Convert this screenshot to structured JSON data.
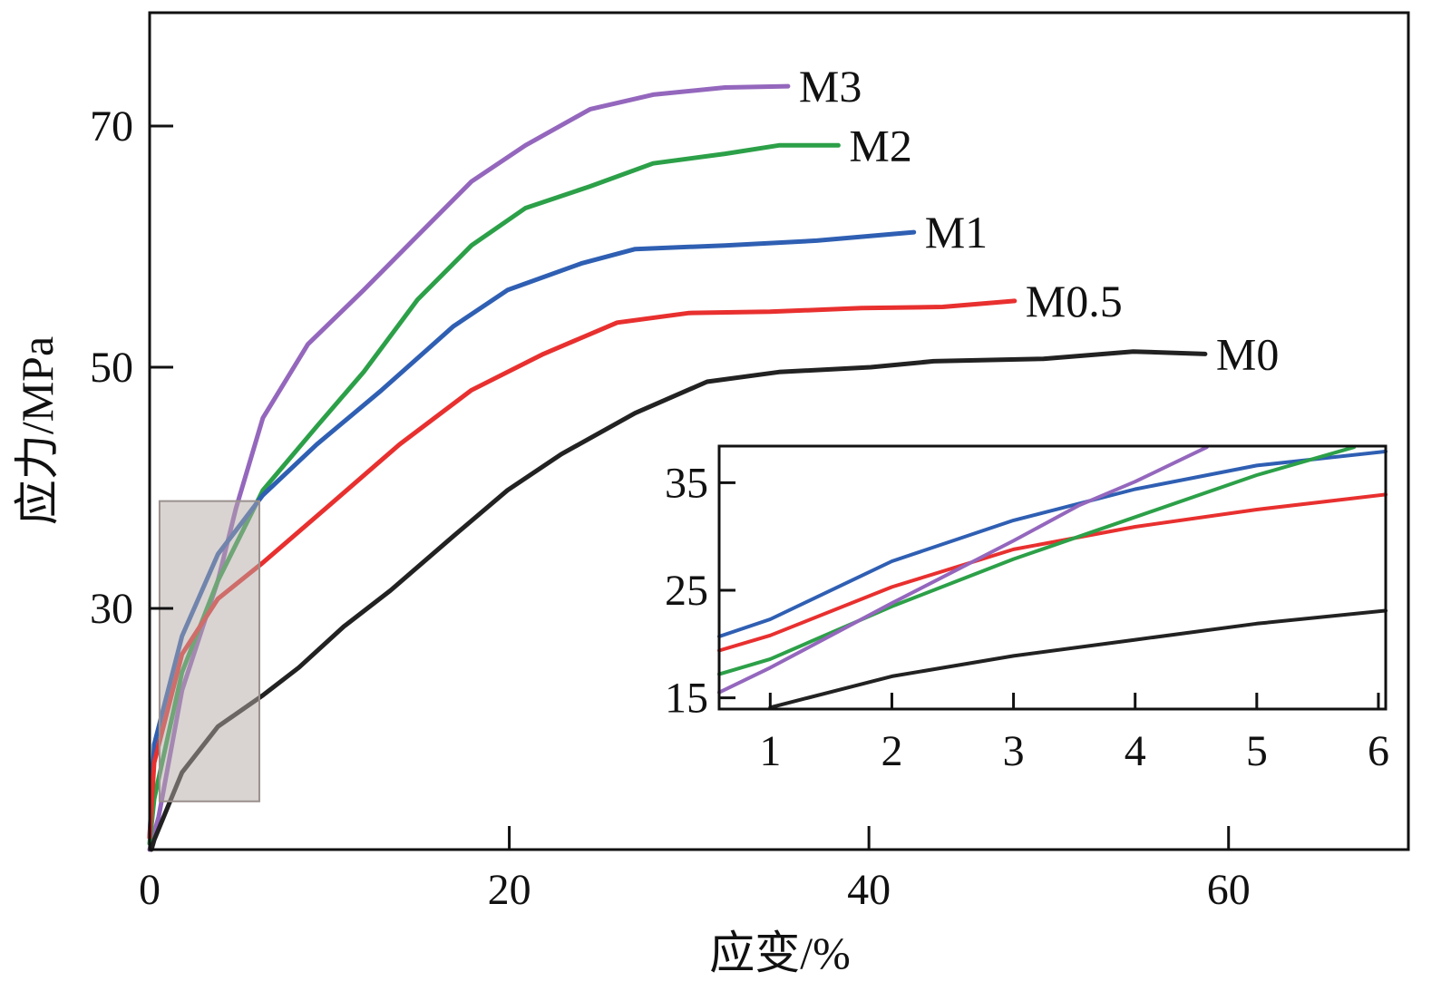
{
  "chart_data": [
    {
      "type": "line",
      "xlabel": "应变/%",
      "ylabel": "应力/MPa",
      "xlim": [
        0,
        70
      ],
      "ylim": [
        10,
        79.4
      ],
      "xticks": [
        0,
        20,
        40,
        60
      ],
      "yticks": [
        30,
        50,
        70
      ],
      "grid": false,
      "highlight_region": {
        "x": [
          0.55,
          6.1
        ],
        "y": [
          14.0,
          38.9
        ],
        "color": "#b4aaa5"
      },
      "series": [
        {
          "name": "M3",
          "color": "#9467bd",
          "x": [
            0,
            0.5,
            1.8,
            3.8,
            4.8,
            6.3,
            8.8,
            11.9,
            14.9,
            17.9,
            20.9,
            24.5,
            28,
            32,
            35.5
          ],
          "y": [
            10,
            12.7,
            23.2,
            32.3,
            38.3,
            45.8,
            51.9,
            56.4,
            60.9,
            65.4,
            68.4,
            71.4,
            72.6,
            73.2,
            73.3
          ]
        },
        {
          "name": "M2",
          "color": "#2ca048",
          "x": [
            0,
            0.25,
            1.8,
            3.8,
            6.3,
            9.3,
            11.9,
            14.9,
            17.9,
            20.9,
            24.5,
            28,
            32,
            35,
            38.3
          ],
          "y": [
            10.5,
            14.2,
            24.7,
            32.3,
            39.8,
            45.1,
            49.6,
            55.6,
            60.1,
            63.2,
            65,
            66.9,
            67.7,
            68.4,
            68.4
          ]
        },
        {
          "name": "M1",
          "color": "#2f5fb3",
          "x": [
            0,
            0.25,
            1.8,
            3.8,
            6.3,
            9.3,
            12.9,
            16.9,
            19.9,
            24,
            27,
            32,
            37.1,
            42.5
          ],
          "y": [
            11,
            18.7,
            27.7,
            34.5,
            39.4,
            43.6,
            48.1,
            53.4,
            56.4,
            58.6,
            59.8,
            60.1,
            60.5,
            61.2
          ]
        },
        {
          "name": "M0.5",
          "color": "#e8302f",
          "x": [
            0,
            0.25,
            1.8,
            3.8,
            6.3,
            9.8,
            13.9,
            17.9,
            21.9,
            26,
            30,
            34.5,
            39.6,
            44.1,
            48.1
          ],
          "y": [
            11,
            17.2,
            26.2,
            30.8,
            33.8,
            38.3,
            43.6,
            48.1,
            51.1,
            53.7,
            54.5,
            54.6,
            54.9,
            55,
            55.5
          ]
        },
        {
          "name": "M0",
          "color": "#222222",
          "x": [
            0.1,
            0.25,
            1.8,
            3.8,
            6.3,
            8.3,
            10.8,
            13.4,
            16.9,
            19.9,
            22.9,
            27,
            31,
            35,
            40.1,
            43.6,
            49.7,
            54.7,
            58.7
          ],
          "y": [
            10,
            10.8,
            16.4,
            20.2,
            22.8,
            25.1,
            28.5,
            31.5,
            36,
            39.8,
            42.8,
            46.2,
            48.8,
            49.6,
            50,
            50.5,
            50.7,
            51.3,
            51.1
          ]
        }
      ]
    },
    {
      "type": "line",
      "xlim": [
        0.58,
        6.06
      ],
      "ylim": [
        13.96,
        38.4
      ],
      "xticks": [
        1,
        2,
        3,
        4,
        5,
        6
      ],
      "yticks": [
        15,
        25,
        35
      ],
      "grid": false,
      "series": [
        {
          "color": "#2f5fb3",
          "x": [
            0.58,
            1,
            2,
            3,
            4,
            5,
            6.06
          ],
          "y": [
            20.7,
            22.3,
            27.7,
            31.5,
            34.4,
            36.6,
            37.9
          ]
        },
        {
          "color": "#e8302f",
          "x": [
            0.58,
            1,
            2,
            3,
            4,
            5,
            6.06
          ],
          "y": [
            19.4,
            20.8,
            25.3,
            28.8,
            30.9,
            32.5,
            33.9
          ]
        },
        {
          "color": "#2ca048",
          "x": [
            0.58,
            1,
            2,
            3,
            4,
            5,
            5.8
          ],
          "y": [
            17.2,
            18.6,
            23.5,
            27.9,
            31.8,
            35.7,
            38.3
          ]
        },
        {
          "color": "#9467bd",
          "x": [
            0.58,
            1,
            2,
            3,
            3.54,
            4,
            4.59
          ],
          "y": [
            15.5,
            17.8,
            23.8,
            29.6,
            32.9,
            35.1,
            38.3
          ]
        },
        {
          "color": "#222222",
          "x": [
            1,
            2,
            3,
            4,
            5,
            6.06
          ],
          "y": [
            14.1,
            17,
            18.9,
            20.4,
            21.9,
            23.1
          ]
        }
      ]
    }
  ]
}
